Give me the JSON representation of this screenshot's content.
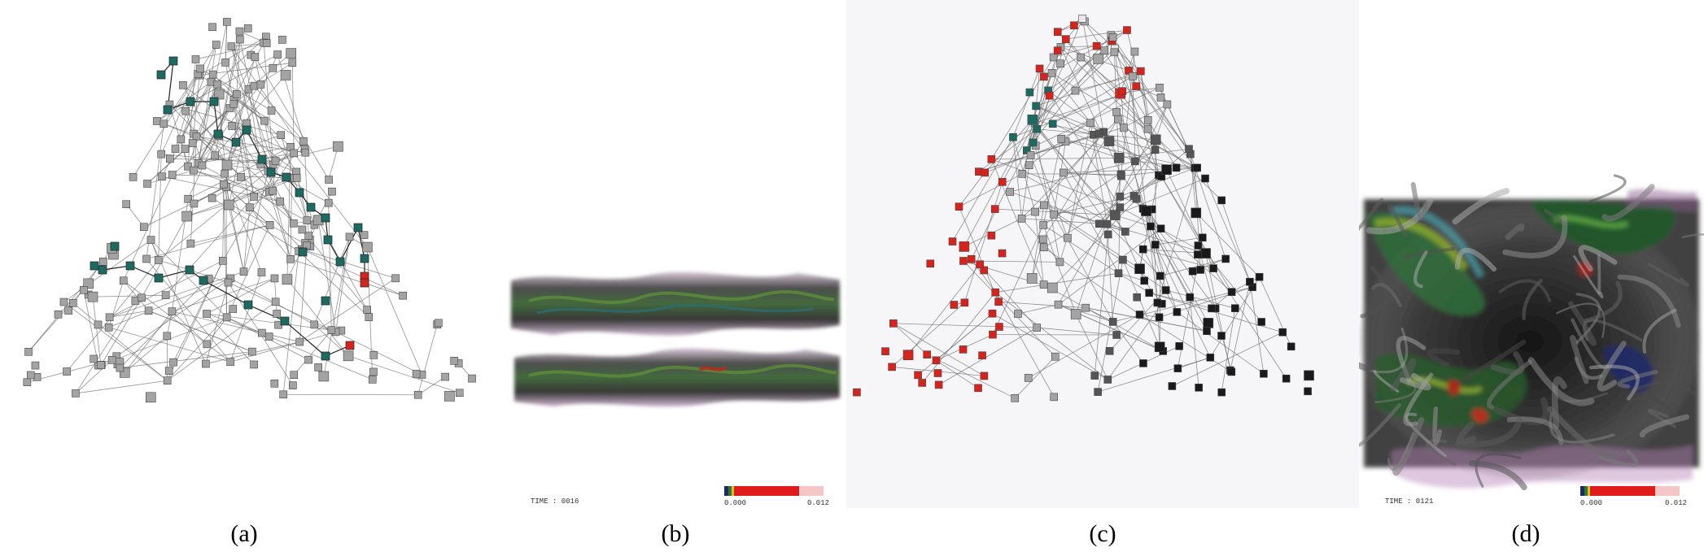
{
  "captions": [
    "(a)",
    "(b)",
    "(c)",
    "(d)"
  ],
  "panel_b": {
    "time_label": "TIME : 0016",
    "colorbar_min": "0.000",
    "colorbar_max": "0.012"
  },
  "panel_d": {
    "time_label": "TIME : 0121",
    "colorbar_min": "0.000",
    "colorbar_max": "0.012"
  },
  "colors": {
    "node_gray": "#a3a3a3",
    "node_teal": "#1d6a63",
    "node_red": "#d8231d",
    "node_black": "#1a1a1a",
    "node_white": "#e9e9e9",
    "edge": "#6f6f6f",
    "colorbar_red": "#e01b1b"
  },
  "legend_words": {
    "nodes_a": "gray, teal, red",
    "nodes_c": "red, teal, gray, black, white"
  }
}
